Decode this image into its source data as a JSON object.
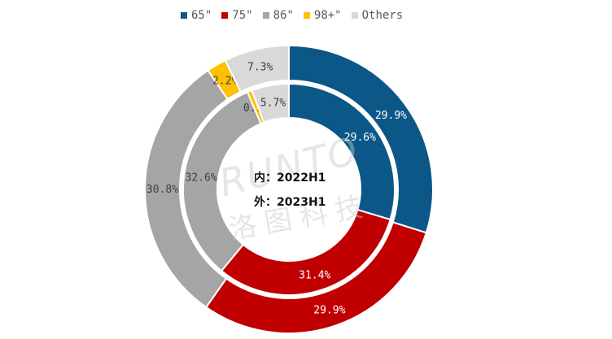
{
  "chart_data": {
    "type": "donut",
    "categories": [
      "65\"",
      "75\"",
      "86\"",
      "98+\"",
      "Others"
    ],
    "colors": [
      "#0b5788",
      "#c00000",
      "#a5a5a5",
      "#ffc000",
      "#d9d9d9"
    ],
    "series": [
      {
        "name": "2022H1",
        "ring": "inner",
        "values": [
          29.6,
          31.4,
          32.6,
          0.7,
          5.7
        ],
        "labels": [
          "29.6%",
          "31.4%",
          "32.6%",
          "0.7%",
          "5.7%"
        ]
      },
      {
        "name": "2023H1",
        "ring": "outer",
        "values": [
          29.9,
          29.9,
          30.8,
          2.2,
          7.3
        ],
        "labels": [
          "29.9%",
          "29.9%",
          "30.8%",
          "2.2%",
          "7.3%"
        ]
      }
    ],
    "legend_position": "top",
    "center_labels": [
      "内：2022H1",
      "外：2023H1"
    ]
  },
  "watermark": {
    "brand": "RUNTO",
    "chinese": "洛图科技"
  }
}
